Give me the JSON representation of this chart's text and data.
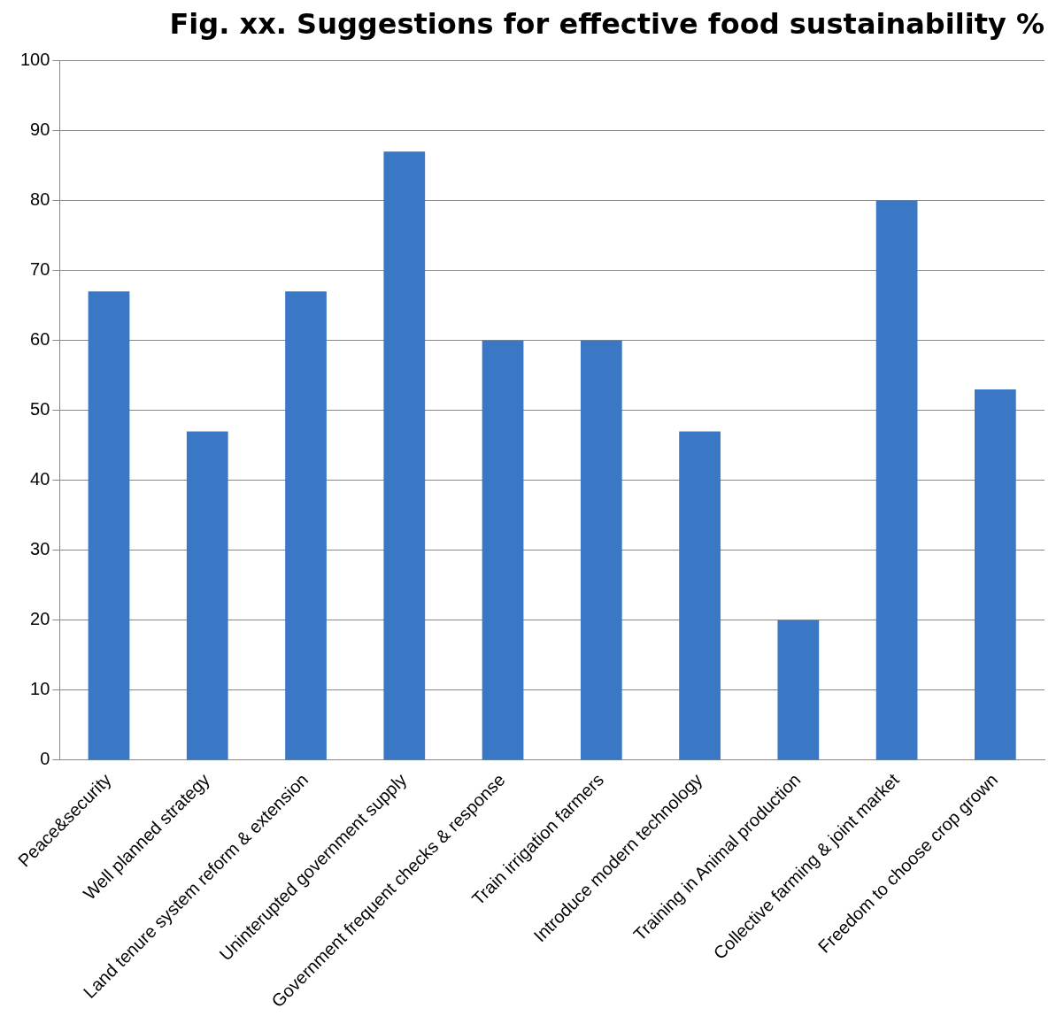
{
  "chart_data": {
    "type": "bar",
    "title": "Fig. xx. Suggestions for effective food sustainability %",
    "categories": [
      "Peace&security",
      "Well planned strategy",
      "Land tenure system reform & extension",
      "Uninterupted government supply",
      "Government frequent checks & response",
      "Train irrigation farmers",
      "Introduce modern technology",
      "Training in Animal production",
      "Collective farming & joint market",
      "Freedom to choose crop grown"
    ],
    "values": [
      67,
      47,
      67,
      87,
      60,
      60,
      47,
      20,
      80,
      53
    ],
    "color": "#3a78c6",
    "ylim": [
      0,
      100
    ],
    "yticks": [
      0,
      10,
      20,
      30,
      40,
      50,
      60,
      70,
      80,
      90,
      100
    ],
    "grid": "y",
    "legend": false
  }
}
